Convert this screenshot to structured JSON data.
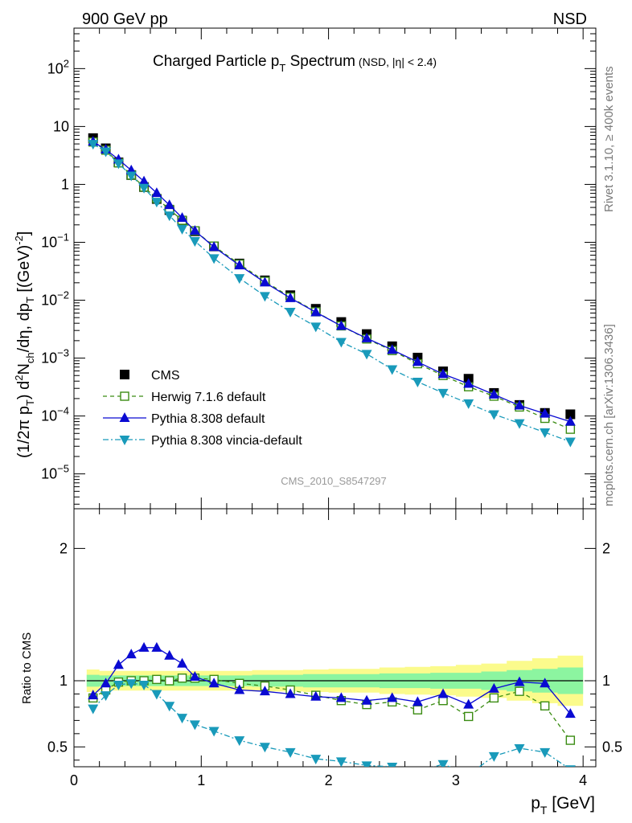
{
  "header": {
    "left": "900 GeV pp",
    "right": "NSD"
  },
  "side_labels": {
    "rivet": "Rivet 3.1.10, ≥ 400k events",
    "mcplots": "mcplots.cern.ch [arXiv:1306.3436]"
  },
  "watermark": "CMS_2010_S8547297",
  "chart_data": [
    {
      "type": "scatter",
      "panel": "main",
      "title": "Charged Particle p_T Spectrum",
      "subtitle": "(NSD, |η| < 2.4)",
      "ylabel": "(1/2π p_T) d²N_ch/dη, dp_T [(GeV)⁻²]",
      "yscale": "log",
      "xlim": [
        0,
        4.1
      ],
      "ylim": [
        2.5e-06,
        500
      ],
      "legend_position": "bottom-left",
      "x": [
        0.15,
        0.25,
        0.35,
        0.45,
        0.55,
        0.65,
        0.75,
        0.85,
        0.95,
        1.1,
        1.3,
        1.5,
        1.7,
        1.9,
        2.1,
        2.3,
        2.5,
        2.7,
        2.9,
        3.1,
        3.3,
        3.5,
        3.7,
        3.9
      ],
      "series": [
        {
          "name": "CMS",
          "color": "#000000",
          "marker": "square-filled",
          "line": "none",
          "values": [
            6.3,
            4.2,
            2.4,
            1.45,
            0.9,
            0.56,
            0.36,
            0.235,
            0.155,
            0.085,
            0.043,
            0.022,
            0.0122,
            0.0071,
            0.0042,
            0.0026,
            0.0016,
            0.00102,
            0.00059,
            0.00044,
            0.00025,
            0.000155,
            0.000113,
            0.000107
          ]
        },
        {
          "name": "Herwig 7.1.6 default",
          "color": "#3b8c13",
          "marker": "square-open",
          "line": "dashed",
          "values": [
            5.4,
            3.9,
            2.35,
            1.45,
            0.9,
            0.57,
            0.37,
            0.24,
            0.158,
            0.086,
            0.042,
            0.0212,
            0.0113,
            0.0063,
            0.0036,
            0.00214,
            0.00135,
            0.0008,
            0.0005,
            0.00032,
            0.00022,
            0.000143,
            9.1e-05,
            5.9e-05
          ]
        },
        {
          "name": "Pythia 8.308 default",
          "color": "#0a0ad2",
          "marker": "triangle-up",
          "line": "solid",
          "values": [
            5.5,
            4.0,
            2.7,
            1.75,
            1.13,
            0.71,
            0.44,
            0.265,
            0.158,
            0.083,
            0.04,
            0.0203,
            0.0109,
            0.0062,
            0.0036,
            0.0022,
            0.00139,
            0.00086,
            0.00053,
            0.00036,
            0.000235,
            0.000152,
            0.00011,
            8e-05
          ]
        },
        {
          "name": "Pythia 8.308 vincia-default",
          "color": "#199aba",
          "marker": "triangle-down",
          "line": "dashdot",
          "values": [
            5.0,
            3.7,
            2.3,
            1.42,
            0.87,
            0.5,
            0.29,
            0.17,
            0.105,
            0.053,
            0.024,
            0.0118,
            0.0063,
            0.0035,
            0.0019,
            0.00118,
            0.00064,
            0.00039,
            0.00025,
            0.000165,
            0.000107,
            7.5e-05,
            5.2e-05,
            3.6e-05
          ]
        }
      ]
    },
    {
      "type": "scatter",
      "panel": "ratio",
      "xlabel": "p_T [GeV]",
      "ylabel": "Ratio to CMS",
      "xlim": [
        0,
        4.1
      ],
      "ylim": [
        0.35,
        2.3
      ],
      "y_ticks": [
        "0.5",
        "1",
        "2"
      ],
      "x_ticks": [
        "0",
        "1",
        "2",
        "3",
        "4"
      ],
      "x": [
        0.15,
        0.25,
        0.35,
        0.45,
        0.55,
        0.65,
        0.75,
        0.85,
        0.95,
        1.1,
        1.3,
        1.5,
        1.7,
        1.9,
        2.1,
        2.3,
        2.5,
        2.7,
        2.9,
        3.1,
        3.3,
        3.5,
        3.7,
        3.9
      ],
      "band_inner": [
        0.045,
        0.04,
        0.04,
        0.04,
        0.04,
        0.04,
        0.04,
        0.04,
        0.04,
        0.04,
        0.04,
        0.045,
        0.045,
        0.05,
        0.05,
        0.05,
        0.055,
        0.055,
        0.06,
        0.06,
        0.07,
        0.08,
        0.09,
        0.1
      ],
      "band_outer": [
        0.085,
        0.075,
        0.075,
        0.075,
        0.075,
        0.075,
        0.075,
        0.075,
        0.075,
        0.075,
        0.075,
        0.08,
        0.08,
        0.085,
        0.09,
        0.09,
        0.1,
        0.105,
        0.11,
        0.12,
        0.13,
        0.15,
        0.17,
        0.19
      ],
      "band_colors": {
        "inner": "#8cf5a0",
        "outer": "#fbfb8c"
      },
      "series": [
        {
          "name": "Herwig 7.1.6 default",
          "color": "#3b8c13",
          "marker": "square-open",
          "line": "dashed",
          "values": [
            0.87,
            0.93,
            0.99,
            1.0,
            1.0,
            1.01,
            1.0,
            1.02,
            1.02,
            1.01,
            0.98,
            0.96,
            0.93,
            0.89,
            0.85,
            0.82,
            0.84,
            0.78,
            0.85,
            0.73,
            0.87,
            0.92,
            0.81,
            0.55
          ]
        },
        {
          "name": "Pythia 8.308 default",
          "color": "#0a0ad2",
          "marker": "triangle-up",
          "line": "solid",
          "values": [
            0.89,
            0.98,
            1.12,
            1.2,
            1.25,
            1.25,
            1.19,
            1.13,
            1.03,
            0.98,
            0.93,
            0.92,
            0.9,
            0.88,
            0.87,
            0.85,
            0.87,
            0.84,
            0.9,
            0.82,
            0.94,
            0.99,
            0.98,
            0.75
          ]
        },
        {
          "name": "Pythia 8.308 vincia-default",
          "color": "#199aba",
          "marker": "triangle-down",
          "line": "dashdot",
          "values": [
            0.79,
            0.89,
            0.97,
            0.98,
            0.97,
            0.9,
            0.81,
            0.72,
            0.67,
            0.62,
            0.55,
            0.5,
            0.46,
            0.41,
            0.39,
            0.36,
            0.35,
            0.31,
            0.37,
            0.29,
            0.43,
            0.49,
            0.46,
            0.33
          ]
        }
      ]
    }
  ]
}
